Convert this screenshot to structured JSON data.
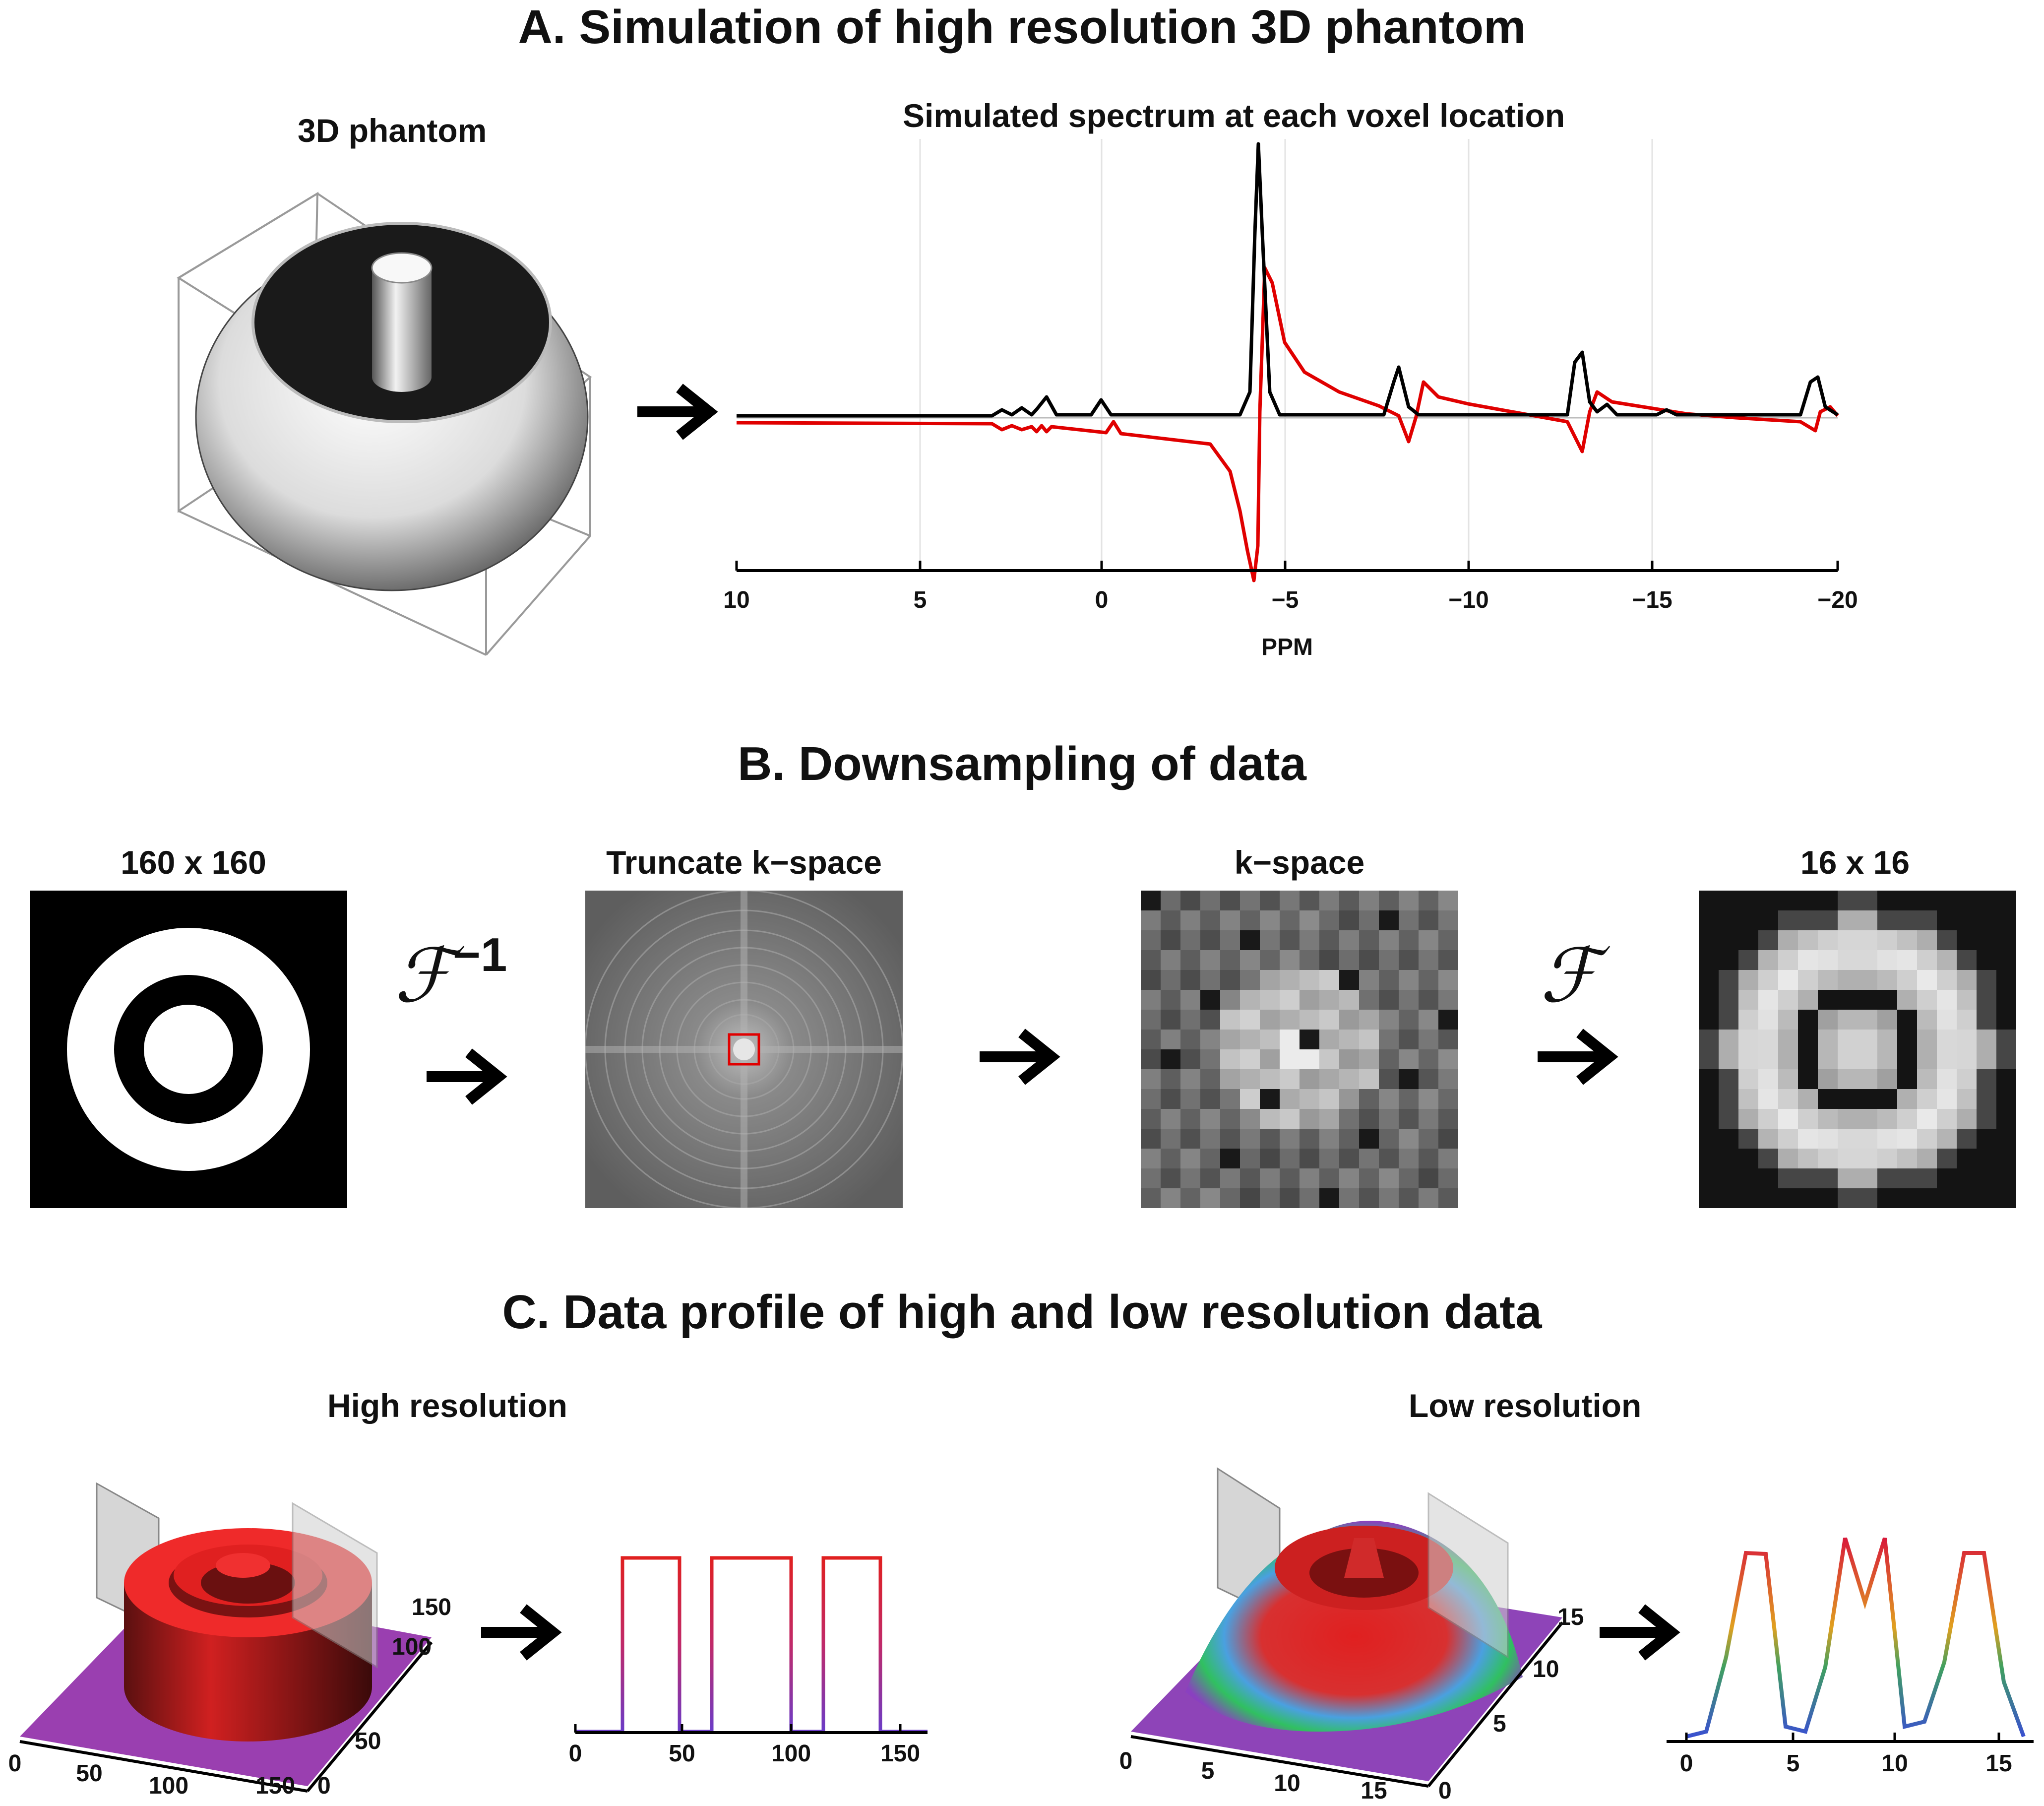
{
  "section_a": {
    "title": "A. Simulation of high resolution 3D phantom",
    "phantom_label": "3D phantom",
    "spectrum_label": "Simulated spectrum at each voxel location",
    "spectrum_xlabel": "PPM",
    "spectrum_ticks": [
      "10",
      "5",
      "0",
      "−5",
      "−10",
      "−15",
      "−20"
    ]
  },
  "section_b": {
    "title": "B. Downsampling of data",
    "img1_label": "160 x 160",
    "img2_label": "Truncate k−space",
    "img3_label": "k−space",
    "img4_label": "16 x 16",
    "op1_symbol": "ℱ",
    "op1_sup": "−1",
    "op2_symbol": "ℱ"
  },
  "section_c": {
    "title": "C. Data profile of high and low resolution data",
    "high_label": "High resolution",
    "low_label": "Low resolution",
    "high3d_ticks_front": [
      "0",
      "50",
      "100",
      "150"
    ],
    "high3d_ticks_side": [
      "0",
      "50",
      "100",
      "150"
    ],
    "high_profile_ticks": [
      "0",
      "50",
      "100",
      "150"
    ],
    "low3d_ticks_front": [
      "0",
      "5",
      "10",
      "15"
    ],
    "low3d_ticks_side": [
      "0",
      "5",
      "10",
      "15"
    ],
    "low_profile_ticks": [
      "0",
      "5",
      "10",
      "15"
    ]
  },
  "colors": {
    "black_trace": "#000000",
    "red_trace": "#e00000",
    "surface_red": "#ee2222",
    "base_purple": "#9a3fb0"
  }
}
